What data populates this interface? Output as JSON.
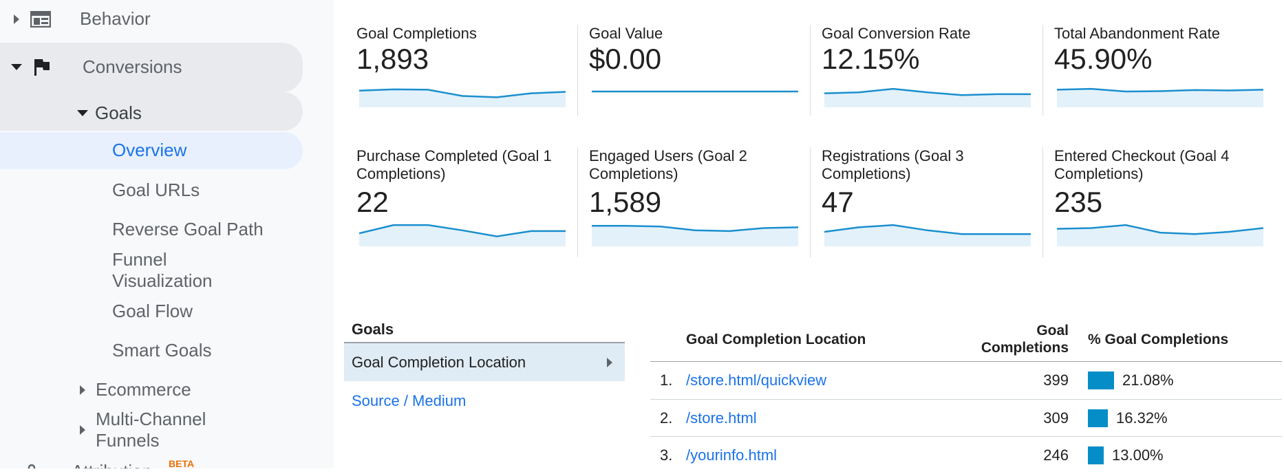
{
  "sidebar": {
    "behavior": "Behavior",
    "conversions": "Conversions",
    "goals": "Goals",
    "overview": "Overview",
    "goal_urls": "Goal URLs",
    "reverse_goal_path": "Reverse Goal Path",
    "funnel_line1": "Funnel",
    "funnel_line2": "Visualization",
    "goal_flow": "Goal Flow",
    "smart_goals": "Smart Goals",
    "ecommerce": "Ecommerce",
    "mcf_line1": "Multi-Channel",
    "mcf_line2": "Funnels",
    "attribution": "Attribution",
    "beta": "BETA"
  },
  "metrics": [
    {
      "title": "Goal Completions",
      "value": "1,893",
      "trend": [
        0.55,
        0.62,
        0.6,
        0.25,
        0.18,
        0.4,
        0.48
      ],
      "flat": false
    },
    {
      "title": "Goal Value",
      "value": "$0.00",
      "trend": [
        0.5,
        0.5,
        0.5,
        0.5,
        0.5,
        0.5,
        0.5
      ],
      "flat": true
    },
    {
      "title": "Goal Conversion Rate",
      "value": "12.15%",
      "trend": [
        0.4,
        0.45,
        0.65,
        0.45,
        0.3,
        0.35,
        0.35
      ],
      "flat": false
    },
    {
      "title": "Total Abandonment Rate",
      "value": "45.90%",
      "trend": [
        0.6,
        0.65,
        0.5,
        0.52,
        0.58,
        0.56,
        0.6
      ],
      "flat": false
    },
    {
      "title_line1": "Purchase Completed (Goal 1",
      "title_line2": "Completions)",
      "value": "22",
      "trend": [
        0.4,
        0.95,
        0.95,
        0.6,
        0.2,
        0.55,
        0.55
      ],
      "flat": false
    },
    {
      "title_line1": "Engaged Users (Goal 2",
      "title_line2": "Completions)",
      "value": "1,589",
      "trend": [
        0.9,
        0.9,
        0.85,
        0.6,
        0.55,
        0.75,
        0.8
      ],
      "flat": false
    },
    {
      "title_line1": "Registrations (Goal 3",
      "title_line2": "Completions)",
      "value": "47",
      "trend": [
        0.5,
        0.8,
        0.95,
        0.6,
        0.35,
        0.35,
        0.35
      ],
      "flat": false
    },
    {
      "title_line1": "Entered Checkout (Goal 4",
      "title_line2": "Completions)",
      "value": "235",
      "trend": [
        0.7,
        0.75,
        0.95,
        0.45,
        0.35,
        0.5,
        0.75
      ],
      "flat": false
    }
  ],
  "goals_panel": {
    "heading": "Goals",
    "selected": "Goal Completion Location",
    "other": "Source / Medium"
  },
  "table": {
    "col_location": "Goal Completion Location",
    "col_completions_line1": "Goal",
    "col_completions_line2": "Completions",
    "col_pct": "% Goal Completions",
    "rows": [
      {
        "idx": "1.",
        "location": "/store.html/quickview",
        "completions": "399",
        "pct": "21.08%",
        "pct_value": 21.08
      },
      {
        "idx": "2.",
        "location": "/store.html",
        "completions": "309",
        "pct": "16.32%",
        "pct_value": 16.32
      },
      {
        "idx": "3.",
        "location": "/yourinfo.html",
        "completions": "246",
        "pct": "13.00%",
        "pct_value": 13.0
      }
    ]
  },
  "colors": {
    "accent": "#1a73e8",
    "spark_line": "#1a8fce",
    "spark_fill": "#e3f1fa",
    "bar": "#058dc7"
  }
}
